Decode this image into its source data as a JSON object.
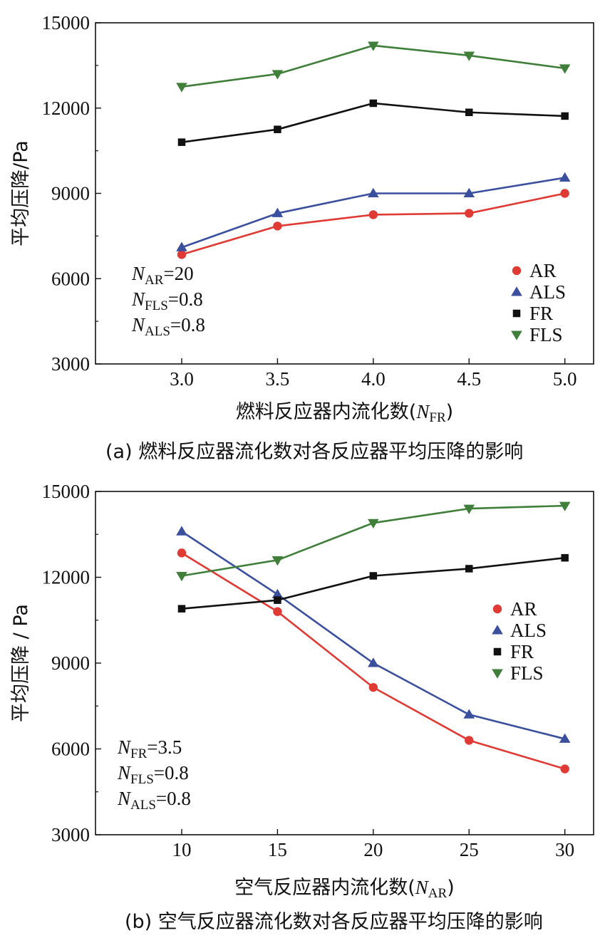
{
  "colors": {
    "AR": "#e03a35",
    "ALS": "#3a4f9e",
    "FR": "#111111",
    "FLS": "#3f7f3a"
  },
  "chart_data": [
    {
      "type": "line",
      "panel": "a",
      "caption": "(a) 燃料反应器流化数对各反应器平均压降的影响",
      "xlabel_main": "燃料反应器内流化数(",
      "xlabel_var": "N",
      "xlabel_sub": "FR",
      "xlabel_end": ")",
      "ylabel": "平均压降/Pa",
      "x": [
        3.0,
        3.5,
        4.0,
        4.5,
        5.0
      ],
      "x_tick_labels": [
        "3.0",
        "3.5",
        "4.0",
        "4.5",
        "5.0"
      ],
      "xlim": [
        2.55,
        5.15
      ],
      "ylim": [
        3000,
        15000
      ],
      "y_ticks": [
        3000,
        6000,
        9000,
        12000,
        15000
      ],
      "y_tick_labels": [
        "3000",
        "6000",
        "9000",
        "12000",
        "15000"
      ],
      "series": [
        {
          "name": "AR",
          "marker": "circle",
          "values": [
            6850,
            7850,
            8250,
            8300,
            9000
          ]
        },
        {
          "name": "ALS",
          "marker": "triangle",
          "values": [
            7100,
            8300,
            9000,
            9000,
            9550
          ]
        },
        {
          "name": "FR",
          "marker": "square",
          "values": [
            10800,
            11250,
            12170,
            11850,
            11720
          ]
        },
        {
          "name": "FLS",
          "marker": "triangle-down",
          "values": [
            12750,
            13200,
            14200,
            13850,
            13400
          ]
        }
      ],
      "legend": [
        "AR",
        "ALS",
        "FR",
        "FLS"
      ],
      "legend_position": "bottom-right",
      "annotations": [
        {
          "var": "N",
          "sub": "AR",
          "rest": "=20"
        },
        {
          "var": "N",
          "sub": "FLS",
          "rest": "=0.8"
        },
        {
          "var": "N",
          "sub": "ALS",
          "rest": "=0.8"
        }
      ]
    },
    {
      "type": "line",
      "panel": "b",
      "caption": "(b) 空气反应器流化数对各反应器平均压降的影响",
      "xlabel_main": "空气反应器内流化数(",
      "xlabel_var": "N",
      "xlabel_sub": "AR",
      "xlabel_end": ")",
      "ylabel": "平均压降 / Pa",
      "x": [
        10,
        15,
        20,
        25,
        30
      ],
      "x_tick_labels": [
        "10",
        "15",
        "20",
        "25",
        "30"
      ],
      "xlim": [
        5.5,
        31.5
      ],
      "ylim": [
        3000,
        15000
      ],
      "y_ticks": [
        3000,
        6000,
        9000,
        12000,
        15000
      ],
      "y_tick_labels": [
        "3000",
        "6000",
        "9000",
        "12000",
        "15000"
      ],
      "series": [
        {
          "name": "AR",
          "marker": "circle",
          "values": [
            12850,
            10800,
            8150,
            6300,
            5300
          ]
        },
        {
          "name": "ALS",
          "marker": "triangle",
          "values": [
            13600,
            11400,
            9000,
            7200,
            6350
          ]
        },
        {
          "name": "FR",
          "marker": "square",
          "values": [
            10900,
            11200,
            12050,
            12300,
            12680
          ]
        },
        {
          "name": "FLS",
          "marker": "triangle-down",
          "values": [
            12050,
            12600,
            13900,
            14400,
            14500
          ]
        }
      ],
      "legend": [
        "AR",
        "ALS",
        "FR",
        "FLS"
      ],
      "legend_position": "right",
      "annotations": [
        {
          "var": "N",
          "sub": "FR",
          "rest": "=3.5"
        },
        {
          "var": "N",
          "sub": "FLS",
          "rest": "=0.8"
        },
        {
          "var": "N",
          "sub": "ALS",
          "rest": "=0.8"
        }
      ]
    }
  ]
}
